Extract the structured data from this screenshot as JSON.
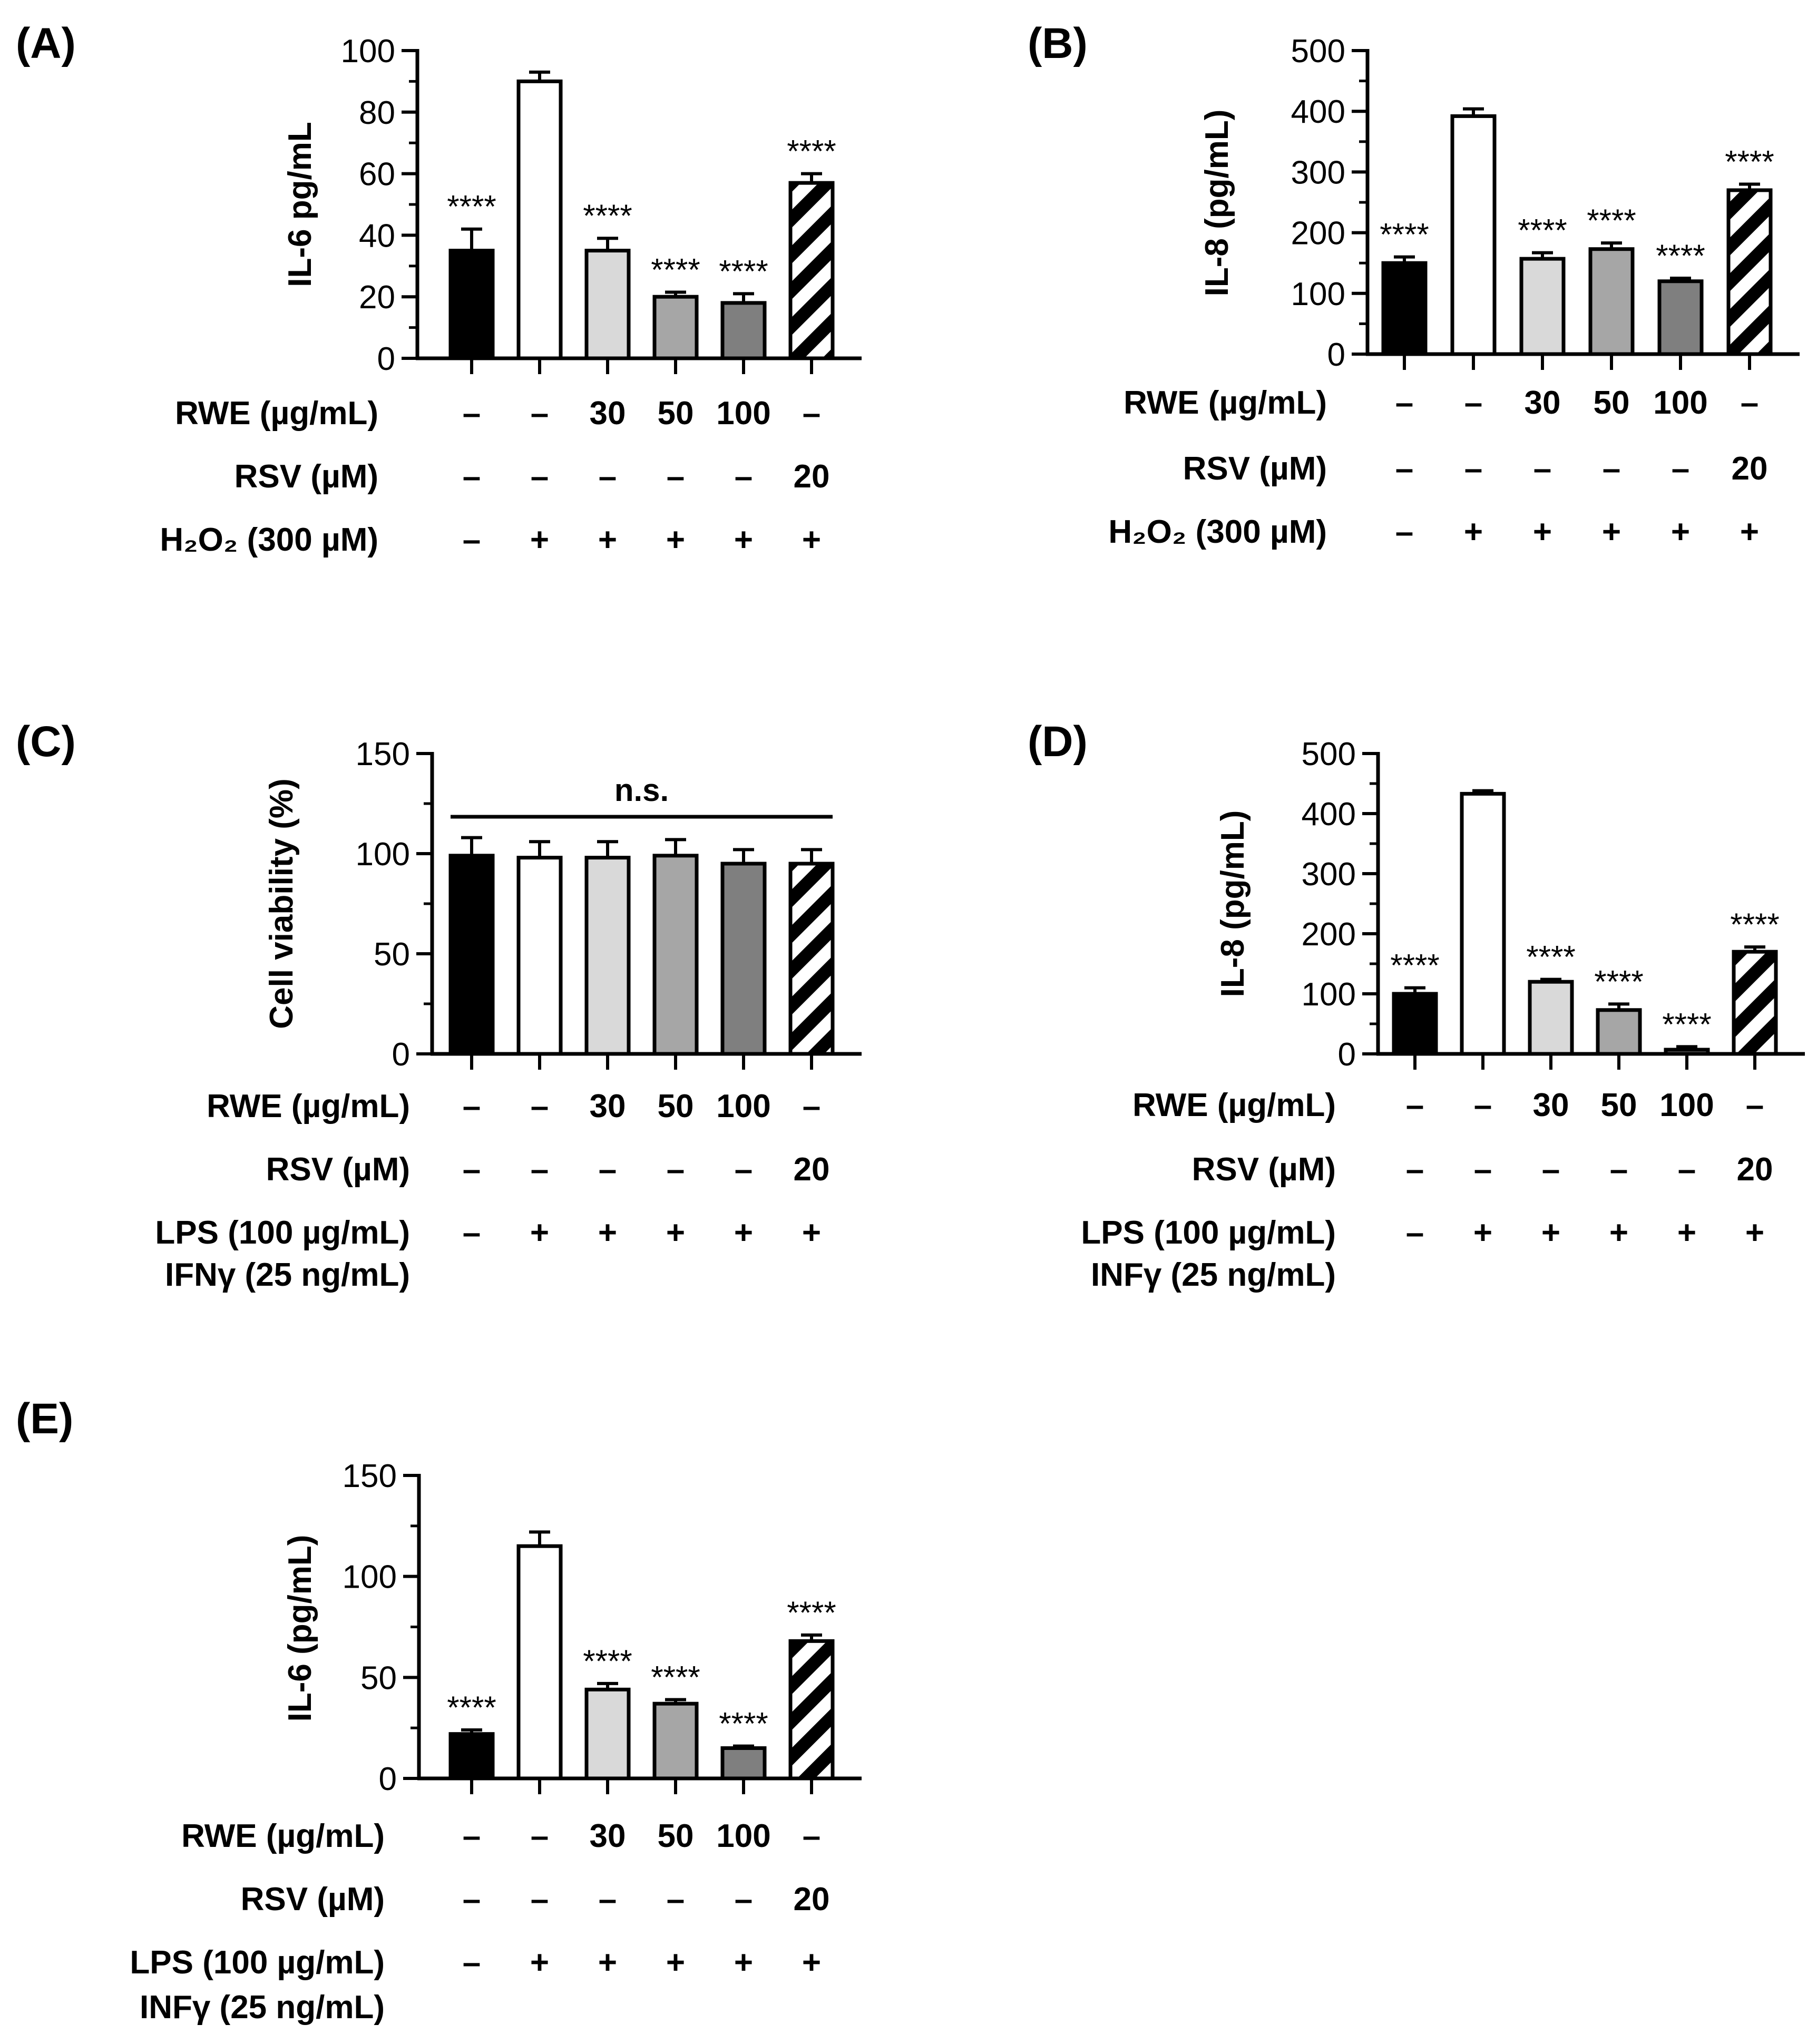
{
  "chart_data": [
    {
      "type": "bar",
      "panel_label": "(A)",
      "ylabel": "IL-6 pg/mL",
      "ylim": [
        0,
        100
      ],
      "yticks": [
        "0",
        "20",
        "40",
        "60",
        "80",
        "100"
      ],
      "values": [
        35,
        90,
        35,
        20,
        18,
        57
      ],
      "errors": [
        7,
        3,
        4,
        1.5,
        3,
        3
      ],
      "fills": [
        "black",
        "white",
        "light",
        "mid",
        "dark",
        "hatch"
      ],
      "stars": [
        "****",
        "",
        "****",
        "****",
        "****",
        "****"
      ],
      "ns": "",
      "rows": [
        {
          "label": "RWE (µg/mL)",
          "cells": [
            "–",
            "–",
            "30",
            "50",
            "100",
            "–"
          ]
        },
        {
          "label": "RSV (µM)",
          "cells": [
            "–",
            "–",
            "–",
            "–",
            "–",
            "20"
          ]
        },
        {
          "label": "H₂O₂ (300 µM)",
          "cells": [
            "–",
            "+",
            "+",
            "+",
            "+",
            "+"
          ]
        }
      ]
    },
    {
      "type": "bar",
      "panel_label": "(B)",
      "ylabel": "IL-8 (pg/mL)",
      "ylim": [
        0,
        500
      ],
      "yticks": [
        "0",
        "100",
        "200",
        "300",
        "400",
        "500"
      ],
      "values": [
        150,
        392,
        157,
        173,
        120,
        270
      ],
      "errors": [
        10,
        12,
        10,
        10,
        5,
        10
      ],
      "fills": [
        "black",
        "white",
        "light",
        "mid",
        "dark",
        "hatch"
      ],
      "stars": [
        "****",
        "",
        "****",
        "****",
        "****",
        "****"
      ],
      "ns": "",
      "rows": [
        {
          "label": "RWE (µg/mL)",
          "cells": [
            "–",
            "–",
            "30",
            "50",
            "100",
            "–"
          ]
        },
        {
          "label": "RSV (µM)",
          "cells": [
            "–",
            "–",
            "–",
            "–",
            "–",
            "20"
          ]
        },
        {
          "label": "H₂O₂ (300 µM)",
          "cells": [
            "–",
            "+",
            "+",
            "+",
            "+",
            "+"
          ]
        }
      ]
    },
    {
      "type": "bar",
      "panel_label": "(C)",
      "ylabel": "Cell viability (%)",
      "ylim": [
        0,
        150
      ],
      "yticks": [
        "0",
        "50",
        "100",
        "150"
      ],
      "values": [
        99,
        98,
        98,
        99,
        95,
        95
      ],
      "errors": [
        9,
        8,
        8,
        8,
        7,
        7
      ],
      "fills": [
        "black",
        "white",
        "light",
        "mid",
        "dark",
        "hatch"
      ],
      "stars": [
        "",
        "",
        "",
        "",
        "",
        ""
      ],
      "ns": "n.s.",
      "rows": [
        {
          "label": "RWE (µg/mL)",
          "cells": [
            "–",
            "–",
            "30",
            "50",
            "100",
            "–"
          ]
        },
        {
          "label": "RSV (µM)",
          "cells": [
            "–",
            "–",
            "–",
            "–",
            "–",
            "20"
          ]
        },
        {
          "label": "LPS (100 µg/mL)",
          "cells": [
            "–",
            "+",
            "+",
            "+",
            "+",
            "+"
          ]
        },
        {
          "label": "IFNγ (25 ng/mL)",
          "cells": []
        }
      ]
    },
    {
      "type": "bar",
      "panel_label": "(D)",
      "ylabel": "IL-8 (pg/mL)",
      "ylim": [
        0,
        500
      ],
      "yticks": [
        "0",
        "100",
        "200",
        "300",
        "400",
        "500"
      ],
      "values": [
        100,
        433,
        120,
        73,
        7,
        170
      ],
      "errors": [
        10,
        5,
        4,
        10,
        5,
        8
      ],
      "fills": [
        "black",
        "white",
        "light",
        "mid",
        "dark",
        "hatch"
      ],
      "stars": [
        "****",
        "",
        "****",
        "****",
        "****",
        "****"
      ],
      "ns": "",
      "rows": [
        {
          "label": "RWE (µg/mL)",
          "cells": [
            "–",
            "–",
            "30",
            "50",
            "100",
            "–"
          ]
        },
        {
          "label": "RSV (µM)",
          "cells": [
            "–",
            "–",
            "–",
            "–",
            "–",
            "20"
          ]
        },
        {
          "label": "LPS (100 µg/mL)",
          "cells": [
            "–",
            "+",
            "+",
            "+",
            "+",
            "+"
          ]
        },
        {
          "label": "INFγ (25 ng/mL)",
          "cells": []
        }
      ]
    },
    {
      "type": "bar",
      "panel_label": "(E)",
      "ylabel": "IL-6 (pg/mL)",
      "ylim": [
        0,
        150
      ],
      "yticks": [
        "0",
        "50",
        "100",
        "150"
      ],
      "values": [
        22,
        115,
        44,
        37,
        15,
        68
      ],
      "errors": [
        2,
        7,
        3,
        2,
        1,
        3
      ],
      "fills": [
        "black",
        "white",
        "light",
        "mid",
        "dark",
        "hatch"
      ],
      "stars": [
        "****",
        "",
        "****",
        "****",
        "****",
        "****"
      ],
      "ns": "",
      "rows": [
        {
          "label": "RWE (µg/mL)",
          "cells": [
            "–",
            "–",
            "30",
            "50",
            "100",
            "–"
          ]
        },
        {
          "label": "RSV (µM)",
          "cells": [
            "–",
            "–",
            "–",
            "–",
            "–",
            "20"
          ]
        },
        {
          "label": "LPS (100 µg/mL)",
          "cells": [
            "–",
            "+",
            "+",
            "+",
            "+",
            "+"
          ]
        },
        {
          "label": "INFγ (25 ng/mL)",
          "cells": []
        }
      ]
    }
  ],
  "colors": {
    "black": "#000000",
    "white": "#ffffff",
    "light": "#d9d9d9",
    "mid": "#a6a6a6",
    "dark": "#7f7f7f",
    "axis": "#000000"
  }
}
